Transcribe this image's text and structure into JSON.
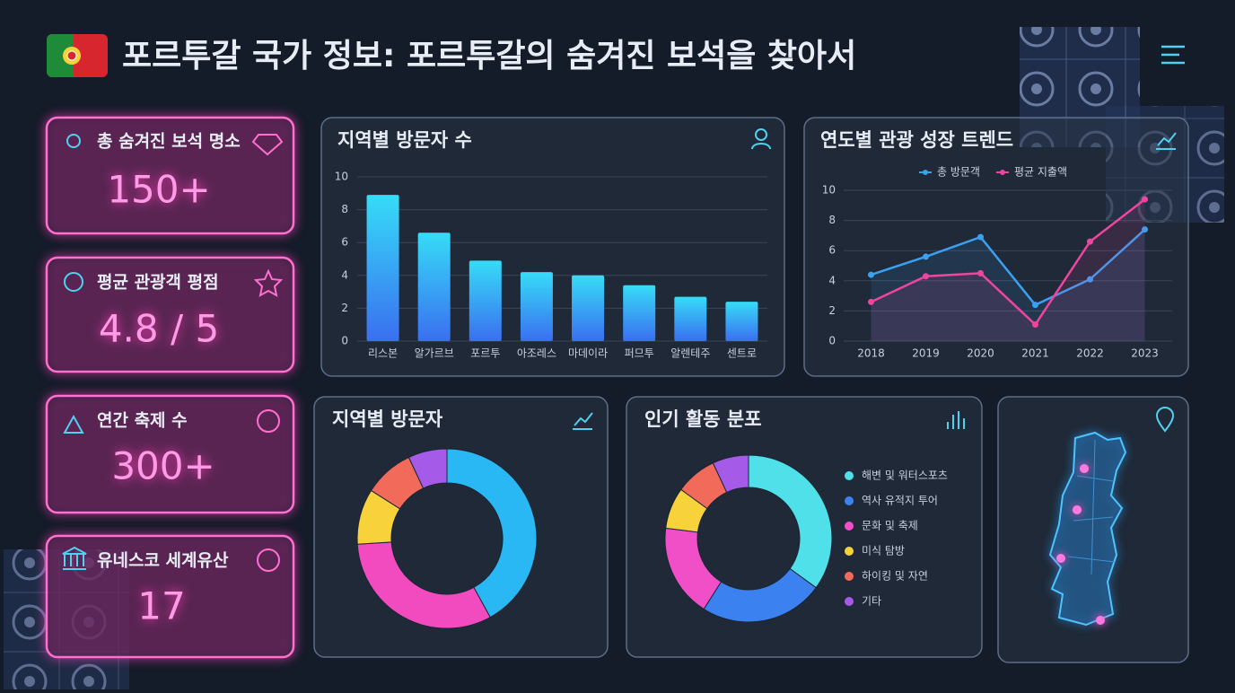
{
  "header": {
    "title": "포르투갈 국가 정보: 포르투갈의 숨겨진 보석을 찾아서"
  },
  "kpis": [
    {
      "label": "총 숨겨진 보석 명소",
      "value": "150+"
    },
    {
      "label": "평균 관광객 평점",
      "value": "4.8 / 5"
    },
    {
      "label": "연간 축제 수",
      "value": "300+"
    },
    {
      "label": "유네스코 세계유산",
      "value": "17"
    }
  ],
  "chart_data": [
    {
      "type": "bar",
      "title": "지역별 방문자 수",
      "categories": [
        "리스본",
        "알가르브",
        "포르투",
        "아조레스",
        "마데이라",
        "퍼므투",
        "알렌테주",
        "센트로"
      ],
      "values": [
        8.9,
        6.6,
        4.9,
        4.2,
        4.0,
        3.4,
        2.7,
        2.4
      ],
      "color": "#36dcf7",
      "ylim": [
        0,
        10
      ],
      "yticks": [
        0,
        2,
        4,
        6,
        8,
        10
      ],
      "grid": true
    },
    {
      "type": "line",
      "title": "연도별 관광 성장 트렌드",
      "categories": [
        "2018",
        "2019",
        "2020",
        "2021",
        "2022",
        "2023"
      ],
      "series": [
        {
          "name": "총 방문객",
          "color": "#3aa0f0",
          "values": [
            4.4,
            5.6,
            6.9,
            2.4,
            4.1,
            7.4
          ]
        },
        {
          "name": "평균 지출액",
          "color": "#f0459f",
          "values": [
            2.6,
            4.3,
            4.5,
            1.1,
            6.6,
            9.4
          ]
        }
      ],
      "ylim": [
        0,
        10
      ],
      "yticks": [
        0,
        2,
        4,
        6,
        8,
        10
      ],
      "grid": true
    },
    {
      "type": "donut",
      "title": "지역별 방문자",
      "values": [
        42,
        32,
        10,
        9,
        7
      ],
      "colors": [
        "#2ab8f5",
        "#f24bc0",
        "#f7d23a",
        "#f26a5a",
        "#a65ae8"
      ]
    },
    {
      "type": "donut",
      "title": "인기 활동 분포",
      "categories": [
        "해변 및 워터스포츠",
        "역사 유적지 투어",
        "문화 및 축제",
        "미식 탐방",
        "하이킹 및 자연",
        "기타"
      ],
      "values": [
        35,
        24,
        18,
        8,
        8,
        7
      ],
      "colors": [
        "#4fe0ea",
        "#3b82f0",
        "#f04fc8",
        "#f7d23a",
        "#f26a5a",
        "#a65ae8"
      ]
    }
  ]
}
